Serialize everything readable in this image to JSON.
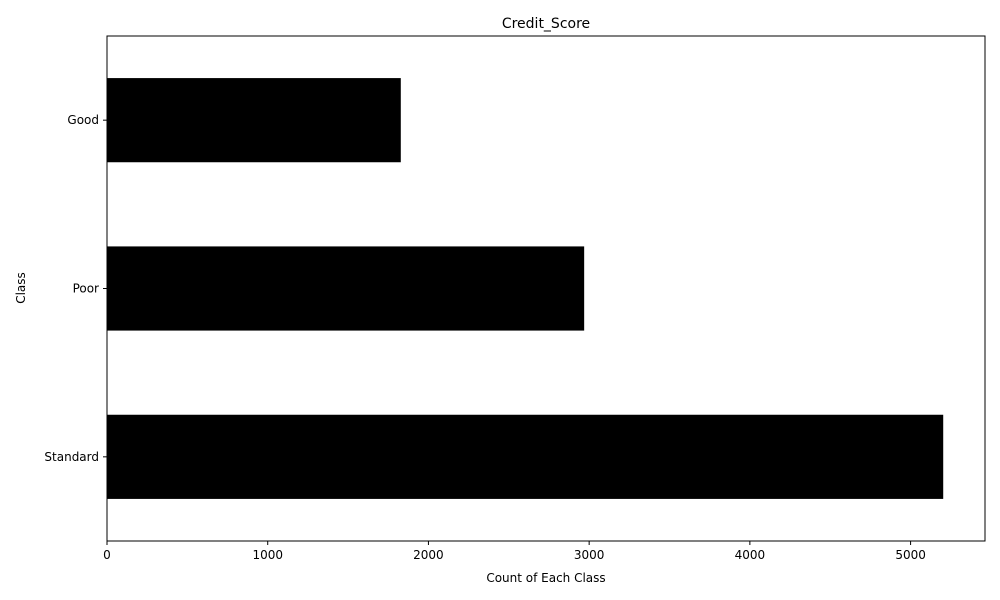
{
  "chart_data": {
    "type": "bar",
    "orientation": "horizontal",
    "title": "Credit_Score",
    "xlabel": "Count of Each Class",
    "ylabel": "Class",
    "categories": [
      "Good",
      "Poor",
      "Standard"
    ],
    "values": [
      1828,
      2969,
      5203
    ],
    "xlim": [
      0,
      5463
    ],
    "xticks": [
      0,
      1000,
      2000,
      3000,
      4000,
      5000
    ],
    "grid": false,
    "bar_color": "#000000"
  }
}
